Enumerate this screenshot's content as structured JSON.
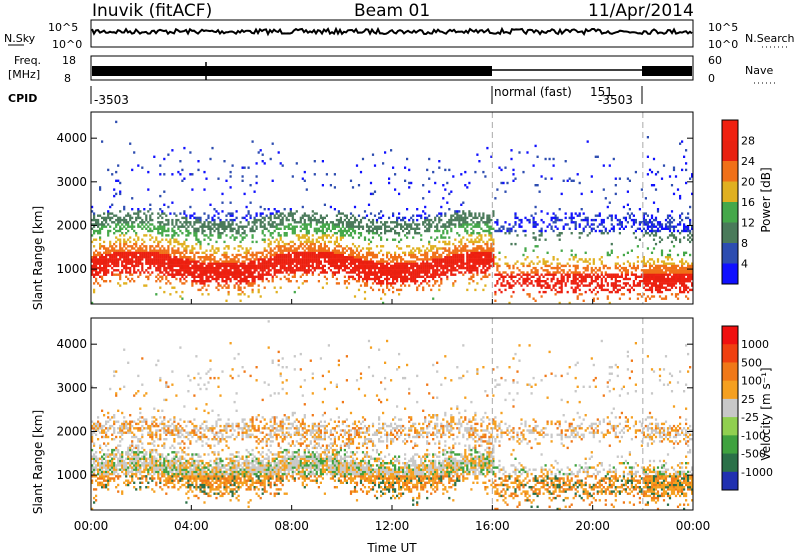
{
  "header": {
    "station": "Inuvik (fitACF)",
    "beam": "Beam 01",
    "date": "11/Apr/2014"
  },
  "panels": {
    "nsky_label": "N.Sky",
    "nsearch_label": "N.Search",
    "freq_label": "Freq.",
    "mhz_label": "[MHz]",
    "nave_label": "Nave",
    "cpid_label": "CPID",
    "noise_ticks": [
      "10^5",
      "10^0"
    ],
    "freq_ticks": [
      "18",
      "8"
    ],
    "nave_ticks": [
      "60",
      "0"
    ],
    "cpid_first": "-3503",
    "cpid_mode": "normal (fast)",
    "cpid_151": "151",
    "cpid_last": "-3503"
  },
  "chart_data": [
    {
      "type": "heatmap",
      "name": "power",
      "ylabel": "Slant Range [km]",
      "xlabel": "Time UT",
      "ylim": [
        200,
        4600
      ],
      "xlim": [
        0,
        24
      ],
      "y_ticks": [
        1000,
        2000,
        3000,
        4000
      ],
      "x_tick_labels": [
        "00:00",
        "04:00",
        "08:00",
        "12:00",
        "16:00",
        "20:00",
        "00:00"
      ],
      "colorbar_label": "Power [dB]",
      "colorbar_ticks": [
        "4",
        "8",
        "12",
        "16",
        "20",
        "24",
        "28"
      ],
      "colors": [
        "#1010ff",
        "#2d4db0",
        "#4a7a5a",
        "#45a84a",
        "#e0b020",
        "#f07018",
        "#e82010",
        "#f02010"
      ],
      "dashed_times": [
        16,
        22
      ]
    },
    {
      "type": "heatmap",
      "name": "velocity",
      "ylabel": "Slant Range [km]",
      "xlabel": "Time UT",
      "ylim": [
        200,
        4600
      ],
      "xlim": [
        0,
        24
      ],
      "y_ticks": [
        1000,
        2000,
        3000,
        4000
      ],
      "x_tick_labels": [
        "00:00",
        "04:00",
        "08:00",
        "12:00",
        "16:00",
        "20:00",
        "00:00"
      ],
      "colorbar_label": "Velocity [m s⁻¹]",
      "colorbar_ticks": [
        "1000",
        "500",
        "100",
        "25",
        "-25",
        "-100",
        "-500",
        "-1000"
      ],
      "colors": [
        "#2030b0",
        "#2a7048",
        "#3fa23f",
        "#90d050",
        "#c8c8c8",
        "#f5a020",
        "#f07818",
        "#f04010",
        "#f01010"
      ],
      "dashed_times": [
        16,
        22
      ]
    }
  ],
  "x_axis_title": "Time UT"
}
